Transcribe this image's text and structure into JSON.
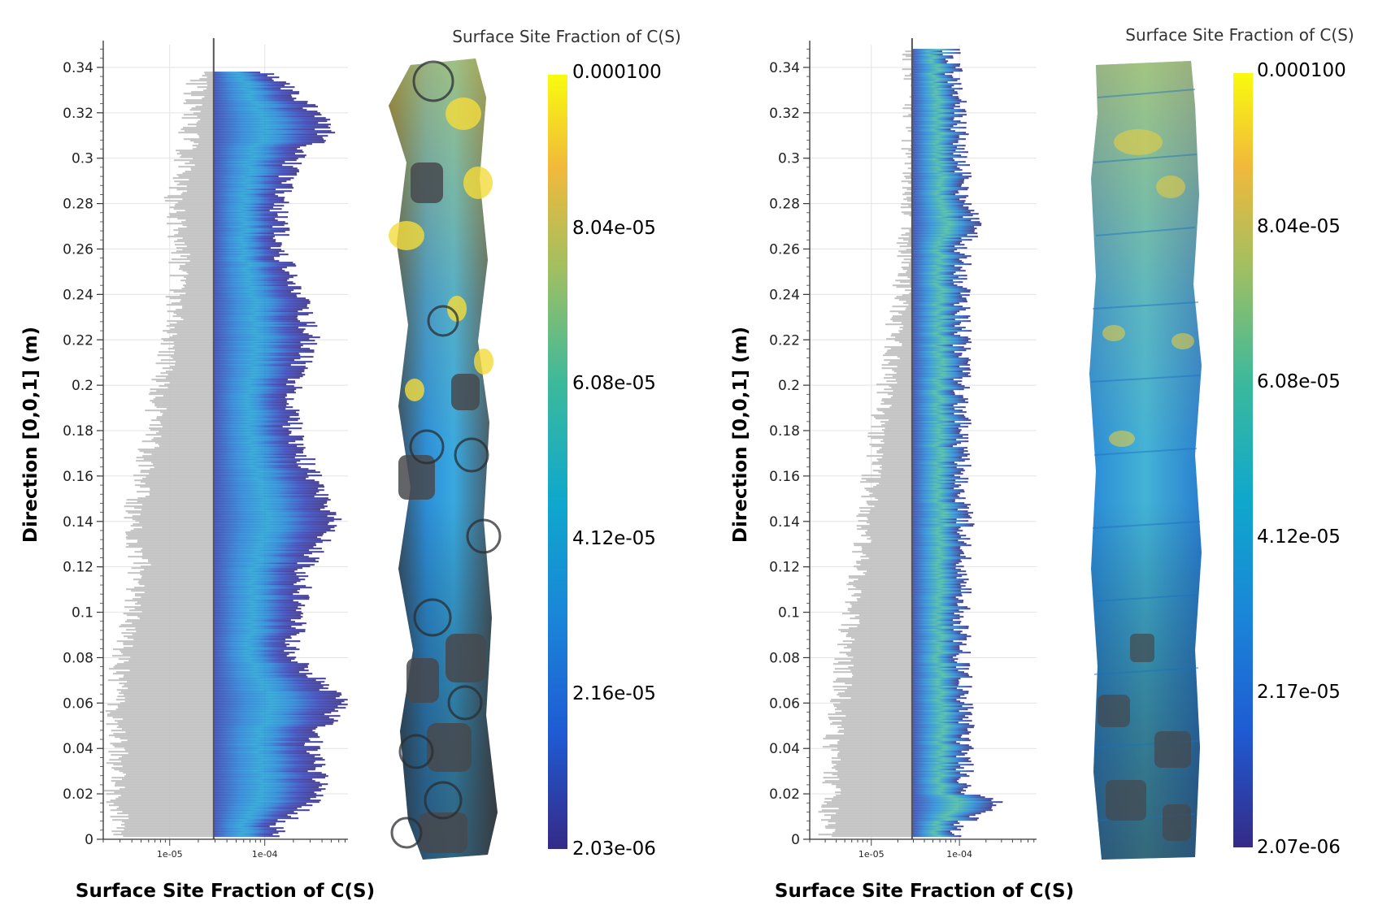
{
  "chart_data": [
    {
      "type": "heatmap",
      "panel": "left",
      "xlabel": "Surface Site Fraction of C(S)",
      "ylabel": "Direction [0,0,1] (m)",
      "x_scale": "log",
      "x_tick_labels": [
        "1e-05",
        "1e-04"
      ],
      "xlim": [
        2e-06,
        0.00075
      ],
      "y_tick_labels": [
        "0",
        "0.02",
        "0.04",
        "0.06",
        "0.08",
        "0.1",
        "0.12",
        "0.14",
        "0.16",
        "0.18",
        "0.2",
        "0.22",
        "0.24",
        "0.26",
        "0.28",
        "0.3",
        "0.32",
        "0.34"
      ],
      "ylim": [
        0,
        0.35
      ],
      "grid": true,
      "colorbar": {
        "title": "Surface Site Fraction of C(S)",
        "labels": [
          "0.000100",
          "8.04e-05",
          "6.08e-05",
          "4.12e-05",
          "2.16e-05",
          "2.03e-06"
        ],
        "min": 2.03e-06,
        "max": 0.0001
      },
      "min_bound": [
        [
          0,
          3.2e-06
        ],
        [
          0.02,
          2.6e-06
        ],
        [
          0.04,
          3e-06
        ],
        [
          0.06,
          2.7e-06
        ],
        [
          0.08,
          3.1e-06
        ],
        [
          0.1,
          4e-06
        ],
        [
          0.12,
          5e-06
        ],
        [
          0.14,
          4e-06
        ],
        [
          0.16,
          5.5e-06
        ],
        [
          0.18,
          6.5e-06
        ],
        [
          0.2,
          8e-06
        ],
        [
          0.22,
          1e-05
        ],
        [
          0.24,
          1.2e-05
        ],
        [
          0.26,
          1.3e-05
        ],
        [
          0.28,
          1.1e-05
        ],
        [
          0.3,
          1.5e-05
        ],
        [
          0.32,
          1.7e-05
        ],
        [
          0.335,
          2e-05
        ]
      ],
      "max_bound": [
        [
          0.005,
          0.00015
        ],
        [
          0.02,
          0.00045
        ],
        [
          0.04,
          0.00035
        ],
        [
          0.06,
          0.0007
        ],
        [
          0.08,
          0.00022
        ],
        [
          0.1,
          0.00025
        ],
        [
          0.12,
          0.0003
        ],
        [
          0.14,
          0.0006
        ],
        [
          0.16,
          0.00035
        ],
        [
          0.18,
          0.00022
        ],
        [
          0.2,
          0.00022
        ],
        [
          0.22,
          0.00035
        ],
        [
          0.24,
          0.00025
        ],
        [
          0.26,
          0.00016
        ],
        [
          0.28,
          0.00016
        ],
        [
          0.3,
          0.00023
        ],
        [
          0.31,
          0.0005
        ],
        [
          0.32,
          0.0004
        ],
        [
          0.34,
          0.0001
        ]
      ],
      "vertical_line_x": 2.9e-05,
      "peak_x": 7e-05
    },
    {
      "type": "heatmap",
      "panel": "right",
      "xlabel": "Surface Site Fraction of C(S)",
      "ylabel": "Direction [0,0,1] (m)",
      "x_scale": "log",
      "x_tick_labels": [
        "1e-05",
        "1e-04"
      ],
      "xlim": [
        2e-06,
        0.00075
      ],
      "y_tick_labels": [
        "0",
        "0.02",
        "0.04",
        "0.06",
        "0.08",
        "0.1",
        "0.12",
        "0.14",
        "0.16",
        "0.18",
        "0.2",
        "0.22",
        "0.24",
        "0.26",
        "0.28",
        "0.3",
        "0.32",
        "0.34"
      ],
      "ylim": [
        0,
        0.35
      ],
      "grid": true,
      "colorbar": {
        "title": "Surface Site Fraction of C(S)",
        "labels": [
          "0.000100",
          "8.04e-05",
          "6.08e-05",
          "4.12e-05",
          "2.17e-05",
          "2.07e-06"
        ],
        "min": 2.07e-06,
        "max": 0.0001
      },
      "min_bound": [
        [
          0,
          3e-06
        ],
        [
          0.02,
          3.5e-06
        ],
        [
          0.04,
          3.5e-06
        ],
        [
          0.06,
          4.5e-06
        ],
        [
          0.08,
          5e-06
        ],
        [
          0.1,
          6e-06
        ],
        [
          0.12,
          7e-06
        ],
        [
          0.14,
          8.5e-06
        ],
        [
          0.16,
          1e-05
        ],
        [
          0.18,
          1.2e-05
        ],
        [
          0.2,
          1.5e-05
        ],
        [
          0.22,
          1.8e-05
        ],
        [
          0.24,
          2.2e-05
        ],
        [
          0.26,
          2.5e-05
        ],
        [
          0.28,
          2.9e-05
        ],
        [
          0.3,
          2.9e-05
        ],
        [
          0.34,
          2.9e-05
        ]
      ],
      "max_bound": [
        [
          0.005,
          0.0001
        ],
        [
          0.015,
          0.00035
        ],
        [
          0.02,
          0.00013
        ],
        [
          0.04,
          0.00013
        ],
        [
          0.06,
          0.00013
        ],
        [
          0.08,
          0.00012
        ],
        [
          0.1,
          0.00012
        ],
        [
          0.12,
          0.00012
        ],
        [
          0.14,
          0.00013
        ],
        [
          0.16,
          0.00012
        ],
        [
          0.18,
          0.00012
        ],
        [
          0.2,
          0.00012
        ],
        [
          0.22,
          0.00012
        ],
        [
          0.24,
          0.00012
        ],
        [
          0.26,
          0.00012
        ],
        [
          0.27,
          0.00017
        ],
        [
          0.28,
          0.00013
        ],
        [
          0.3,
          0.00012
        ],
        [
          0.32,
          0.00011
        ],
        [
          0.345,
          9e-05
        ]
      ],
      "vertical_line_x": 2.9e-05,
      "peak_x": 7e-05
    }
  ]
}
